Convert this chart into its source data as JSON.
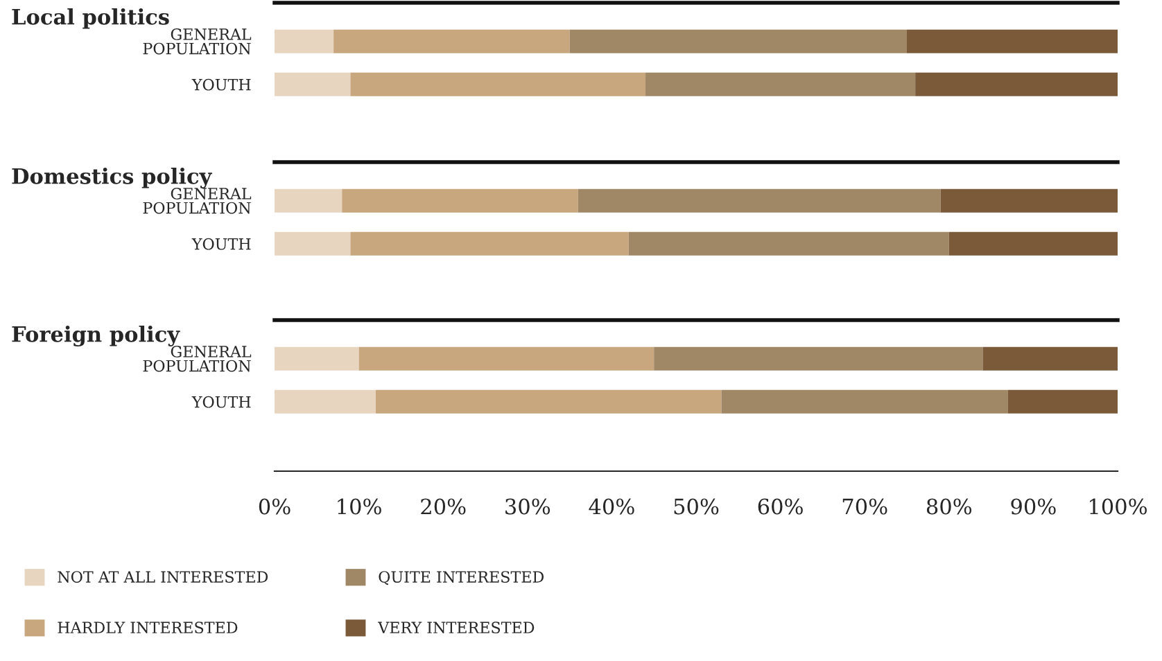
{
  "chart_data": [
    {
      "type": "bar",
      "orientation": "horizontal",
      "stacked": true,
      "title": "Local politics",
      "categories": [
        "GENERAL\nPOPULATION",
        "YOUTH"
      ],
      "xlim": [
        0,
        100
      ],
      "tick_labels": "y",
      "legend": false,
      "grid": false,
      "series": [
        {
          "color": "#e8d5c0",
          "values": [
            7,
            9
          ]
        },
        {
          "color": "#c8a67e",
          "values": [
            28,
            35
          ]
        },
        {
          "color": "#a08766",
          "values": [
            40,
            32
          ]
        },
        {
          "color": "#7a5a38",
          "values": [
            25,
            24
          ]
        }
      ]
    },
    {
      "type": "bar",
      "orientation": "horizontal",
      "stacked": true,
      "title": "Domestics policy",
      "categories": [
        "GENERAL\nPOPULATION",
        "YOUTH"
      ],
      "xlim": [
        0,
        100
      ],
      "tick_labels": "y",
      "legend": false,
      "grid": false,
      "series": [
        {
          "color": "#e8d5c0",
          "values": [
            8,
            9
          ]
        },
        {
          "color": "#c8a67e",
          "values": [
            28,
            33
          ]
        },
        {
          "color": "#a08766",
          "values": [
            43,
            38
          ]
        },
        {
          "color": "#7a5a38",
          "values": [
            21,
            20
          ]
        }
      ]
    },
    {
      "type": "bar",
      "orientation": "horizontal",
      "stacked": true,
      "title": "Foreign policy",
      "categories": [
        "GENERAL\nPOPULATION",
        "YOUTH"
      ],
      "xlim": [
        0,
        100
      ],
      "legend": "bottom",
      "grid": false,
      "xticks": [
        {
          "value": 0,
          "label": "0%"
        },
        {
          "value": 10,
          "label": "10%"
        },
        {
          "value": 20,
          "label": "20%"
        },
        {
          "value": 30,
          "label": "30%"
        },
        {
          "value": 40,
          "label": "40%"
        },
        {
          "value": 50,
          "label": "50%"
        },
        {
          "value": 60,
          "label": "60%"
        },
        {
          "value": 70,
          "label": "70%"
        },
        {
          "value": 80,
          "label": "80%"
        },
        {
          "value": 90,
          "label": "90%"
        },
        {
          "value": 100,
          "label": "100%"
        }
      ],
      "series": [
        {
          "name": "NOT AT ALL INTERESTED",
          "color": "#e8d5c0",
          "values": [
            10,
            12
          ]
        },
        {
          "name": "HARDLY INTERESTED",
          "color": "#c8a67e",
          "values": [
            35,
            41
          ]
        },
        {
          "name": "QUITE INTERESTED",
          "color": "#a08766",
          "values": [
            39,
            34
          ]
        },
        {
          "name": "VERY INTERESTED",
          "color": "#7a5a38",
          "values": [
            16,
            13
          ]
        }
      ]
    }
  ]
}
